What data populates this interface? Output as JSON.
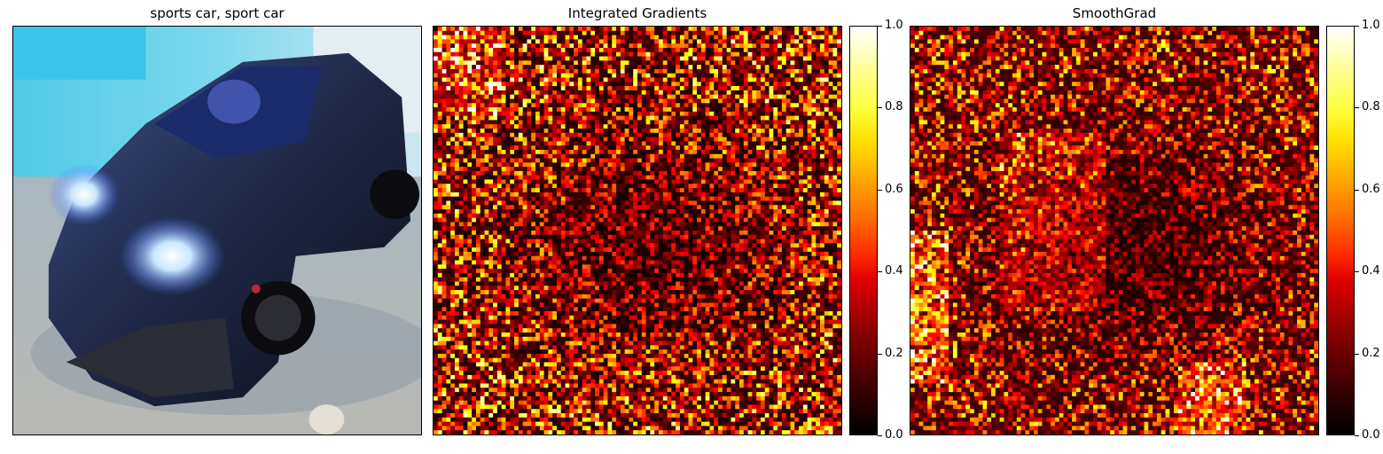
{
  "panels": [
    {
      "title": "sports car, sport car",
      "kind": "image"
    },
    {
      "title": "Integrated Gradients",
      "kind": "heatmap"
    },
    {
      "title": "SmoothGrad",
      "kind": "heatmap"
    }
  ],
  "colorbar": {
    "colormap": "hot",
    "ticks": [
      "0.0",
      "0.2",
      "0.4",
      "0.6",
      "0.8",
      "1.0"
    ],
    "range": [
      0.0,
      1.0
    ]
  },
  "chart_data": [
    {
      "type": "image",
      "title": "sports car, sport car"
    },
    {
      "type": "heatmap",
      "title": "Integrated Gradients",
      "colormap": "hot",
      "value_range": [
        0.0,
        1.0
      ],
      "colorbar_ticks": [
        0.0,
        0.2,
        0.4,
        0.6,
        0.8,
        1.0
      ]
    },
    {
      "type": "heatmap",
      "title": "SmoothGrad",
      "colormap": "hot",
      "value_range": [
        0.0,
        1.0
      ],
      "colorbar_ticks": [
        0.0,
        0.2,
        0.4,
        0.6,
        0.8,
        1.0
      ]
    }
  ]
}
